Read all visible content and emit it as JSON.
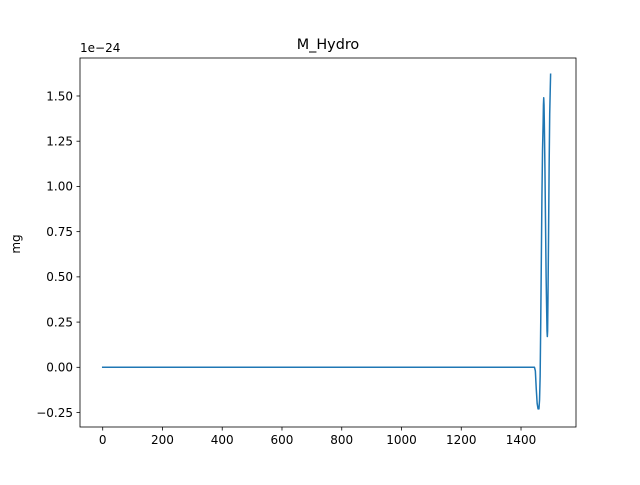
{
  "chart_data": {
    "type": "line",
    "title": "M_Hydro",
    "xlabel": "",
    "ylabel": "mg",
    "y_scale_label": "1e−24",
    "xlim": [
      -76,
      1584
    ],
    "ylim": [
      -0.33,
      1.71
    ],
    "x_ticks": [
      0,
      200,
      400,
      600,
      800,
      1000,
      1200,
      1400
    ],
    "x_tick_labels": [
      "0",
      "200",
      "400",
      "600",
      "800",
      "1000",
      "1200",
      "1400"
    ],
    "y_ticks": [
      -0.25,
      0.0,
      0.25,
      0.5,
      0.75,
      1.0,
      1.25,
      1.5
    ],
    "y_tick_labels": [
      "−0.25",
      "0.00",
      "0.25",
      "0.50",
      "0.75",
      "1.00",
      "1.25",
      "1.50"
    ],
    "grid": false,
    "series": [
      {
        "color": "#1f77b4",
        "points": [
          [
            0,
            0.0
          ],
          [
            1440,
            0.0
          ],
          [
            1445,
            0.0
          ],
          [
            1448,
            -0.02
          ],
          [
            1451,
            -0.12
          ],
          [
            1454,
            -0.2
          ],
          [
            1457,
            -0.23
          ],
          [
            1460,
            -0.23
          ],
          [
            1462,
            -0.18
          ],
          [
            1464,
            -0.05
          ],
          [
            1466,
            0.25
          ],
          [
            1468,
            0.6
          ],
          [
            1470,
            0.95
          ],
          [
            1472,
            1.2
          ],
          [
            1474,
            1.35
          ],
          [
            1475,
            1.45
          ],
          [
            1476,
            1.49
          ],
          [
            1477,
            1.45
          ],
          [
            1478,
            1.35
          ],
          [
            1480,
            1.1
          ],
          [
            1482,
            0.8
          ],
          [
            1484,
            0.5
          ],
          [
            1486,
            0.3
          ],
          [
            1487,
            0.2
          ],
          [
            1488,
            0.17
          ],
          [
            1489,
            0.2
          ],
          [
            1490,
            0.35
          ],
          [
            1492,
            0.7
          ],
          [
            1494,
            1.1
          ],
          [
            1496,
            1.4
          ],
          [
            1498,
            1.55
          ],
          [
            1499,
            1.62
          ]
        ]
      }
    ]
  }
}
